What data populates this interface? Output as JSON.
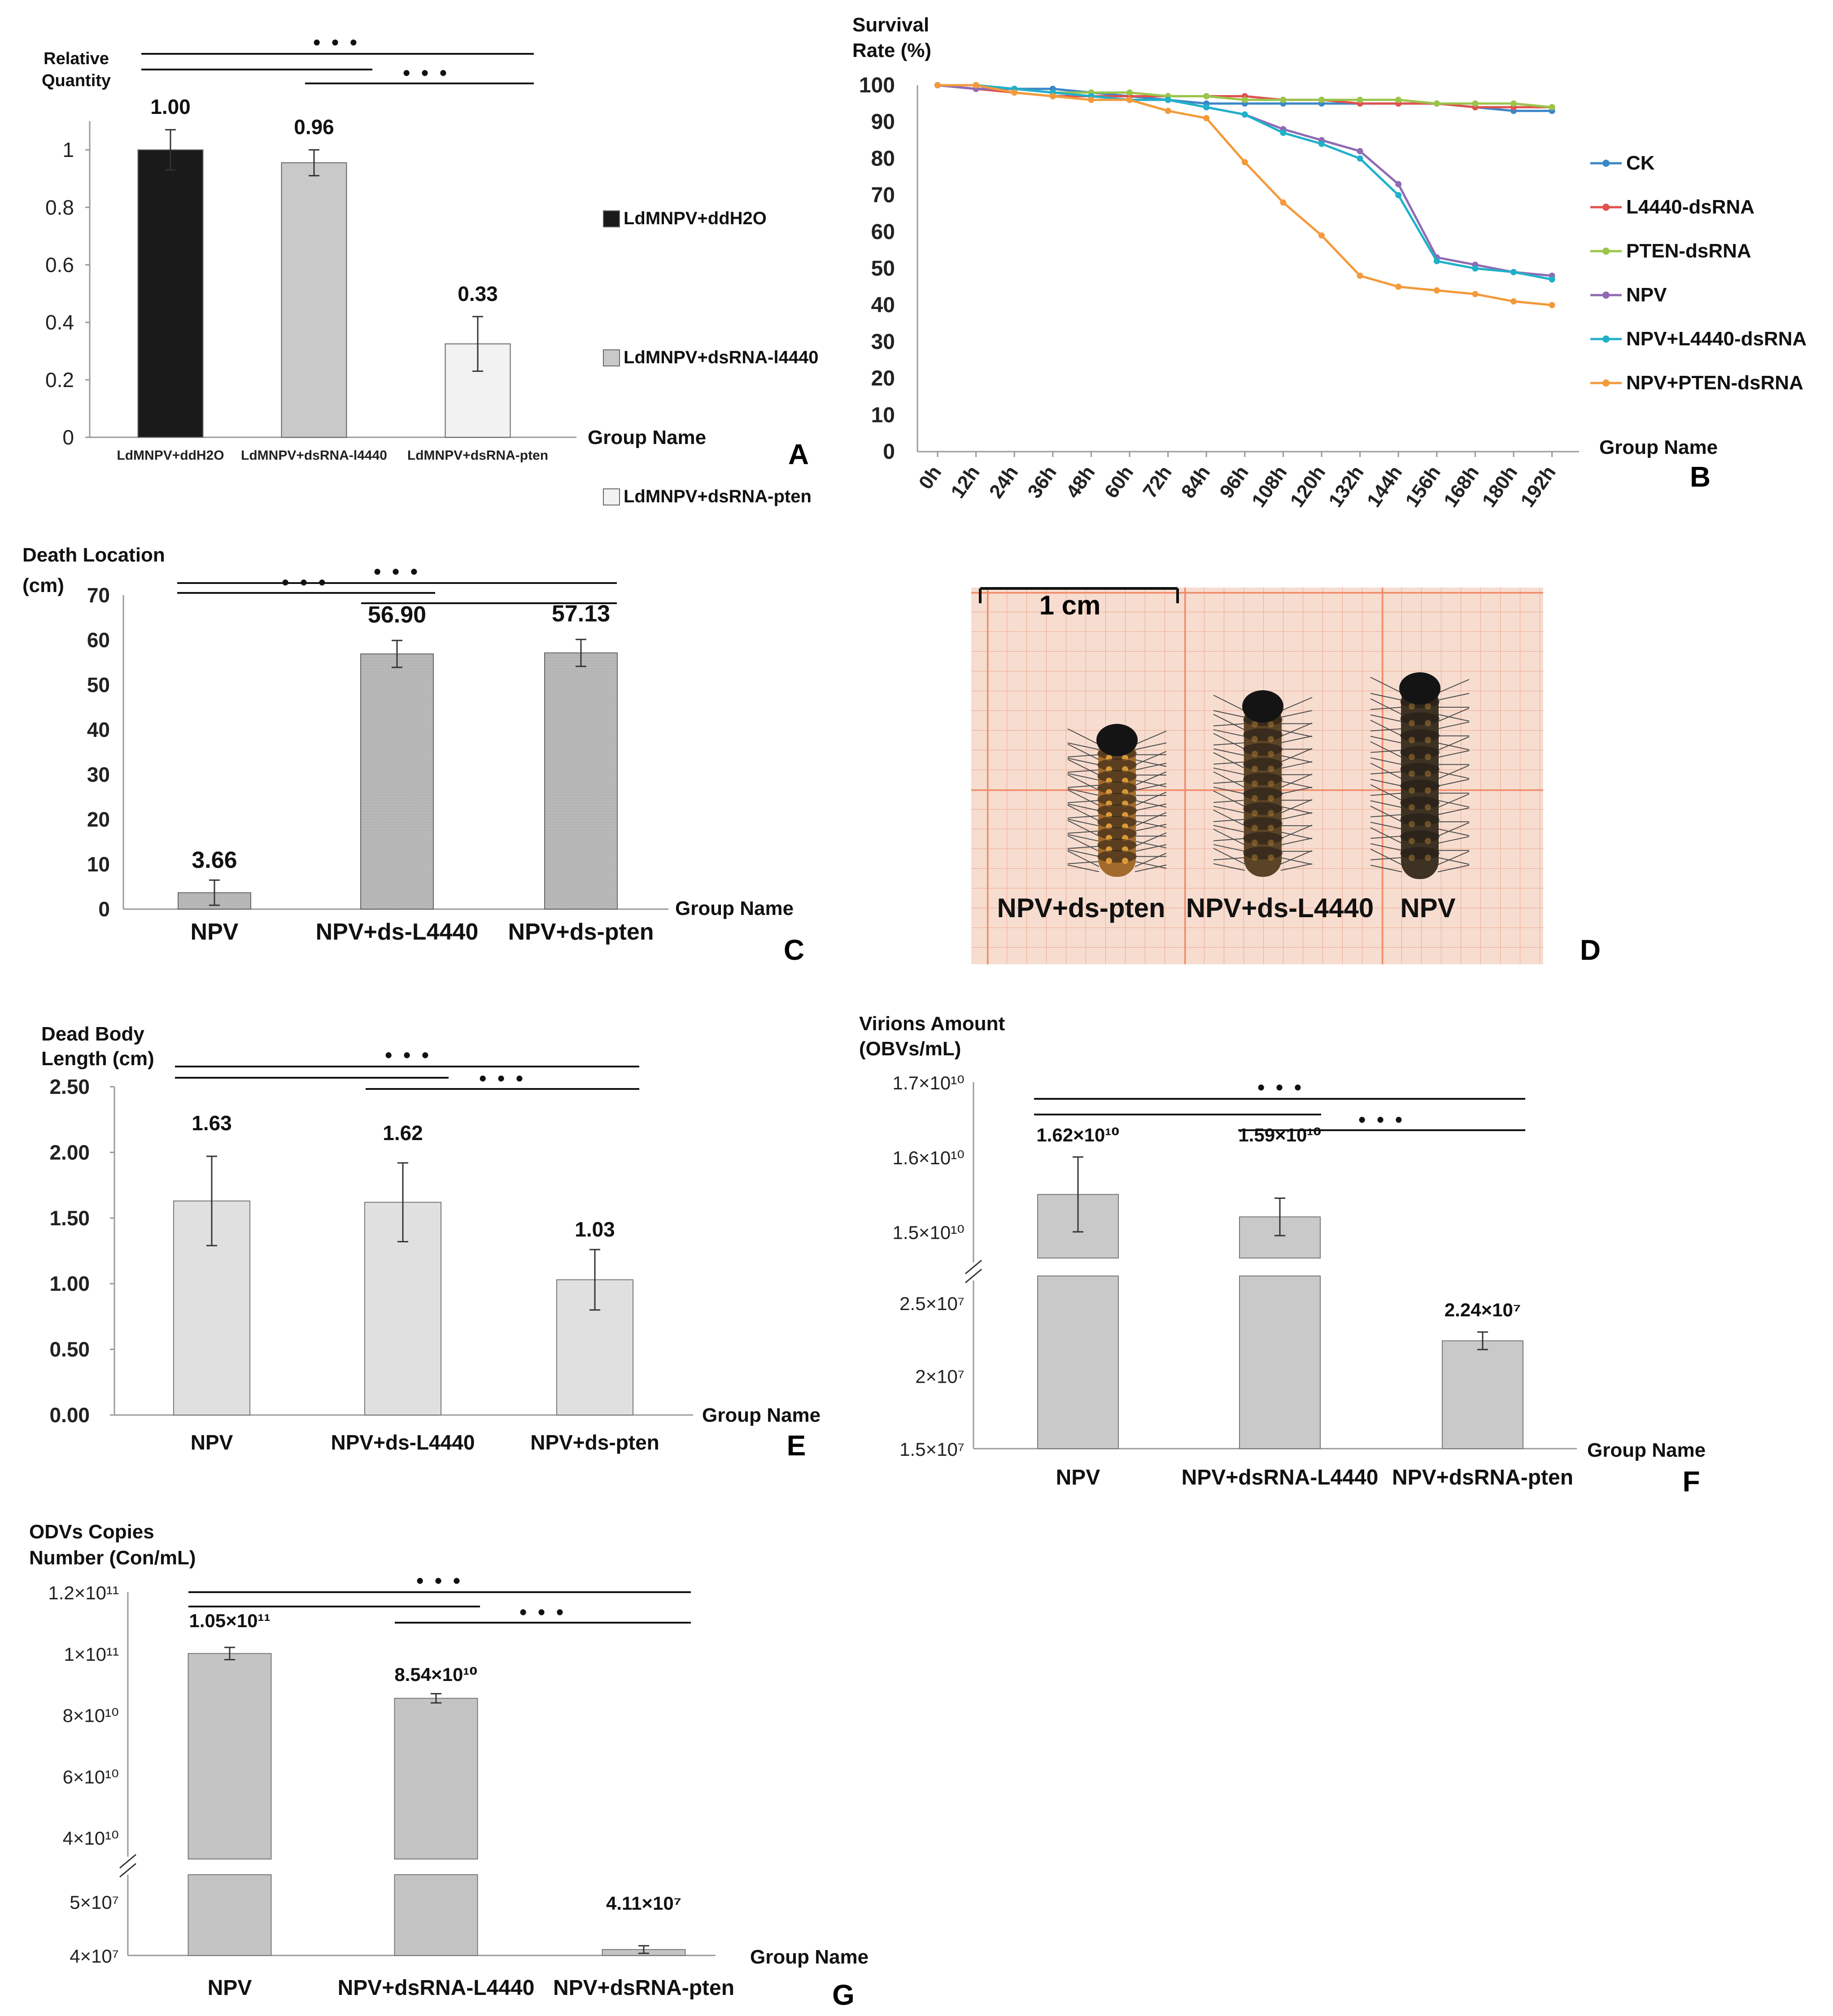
{
  "chart_data": [
    {
      "panel": "A",
      "type": "bar",
      "ylabel": "Relative Quantity",
      "xlabel": "Group Name",
      "ylim": [
        0,
        1.1
      ],
      "yticks": [
        "0",
        "0.2",
        "0.4",
        "0.6",
        "0.8",
        "1"
      ],
      "categories": [
        "LdMNPV+ddH2O",
        "LdMNPV+dsRNA-l4440",
        "LdMNPV+dsRNA-pten"
      ],
      "values": [
        1.0,
        0.955,
        0.325
      ],
      "errors": [
        0.07,
        0.045,
        0.095
      ],
      "value_labels": [
        "1.00",
        "0.96",
        "0.33"
      ],
      "legend": [
        "LdMNPV+ddH2O",
        "LdMNPV+dsRNA-l4440",
        "LdMNPV+dsRNA-pten"
      ],
      "colors": [
        "#1a1a1a",
        "#c9c9c9",
        "#f2f2f2"
      ],
      "significance": "• • •"
    },
    {
      "panel": "B",
      "type": "line",
      "ylabel": "Survival Rate (%)",
      "xlabel": "Group Name",
      "ylim": [
        0,
        100
      ],
      "yticks": [
        "0",
        "10",
        "20",
        "30",
        "40",
        "50",
        "60",
        "70",
        "80",
        "90",
        "100"
      ],
      "x": [
        "0h",
        "12h",
        "24h",
        "36h",
        "48h",
        "60h",
        "72h",
        "84h",
        "96h",
        "108h",
        "120h",
        "132h",
        "144h",
        "156h",
        "168h",
        "180h",
        "192h"
      ],
      "series": [
        {
          "name": "CK",
          "color": "#3a86c8",
          "values": [
            100,
            99,
            99,
            99,
            98,
            97,
            96,
            95,
            95,
            95,
            95,
            95,
            95,
            95,
            94,
            93,
            93
          ]
        },
        {
          "name": "L4440-dsRNA",
          "color": "#e0524f",
          "values": [
            100,
            99,
            98,
            97,
            97,
            97,
            97,
            97,
            97,
            96,
            96,
            95,
            95,
            95,
            94,
            94,
            94
          ]
        },
        {
          "name": "PTEN-dsRNA",
          "color": "#9ac54a",
          "values": [
            100,
            100,
            99,
            98,
            98,
            98,
            97,
            97,
            96,
            96,
            96,
            96,
            96,
            95,
            95,
            95,
            94
          ]
        },
        {
          "name": "NPV",
          "color": "#8f6bb3",
          "values": [
            100,
            99,
            99,
            98,
            97,
            96,
            96,
            94,
            92,
            88,
            85,
            82,
            73,
            53,
            51,
            49,
            48
          ]
        },
        {
          "name": "NPV+L4440-dsRNA",
          "color": "#1fb1c9",
          "values": [
            100,
            100,
            99,
            98,
            97,
            96,
            96,
            94,
            92,
            87,
            84,
            80,
            70,
            52,
            50,
            49,
            47
          ]
        },
        {
          "name": "NPV+PTEN-dsRNA",
          "color": "#f39a3b",
          "values": [
            100,
            100,
            98,
            97,
            96,
            96,
            93,
            91,
            79,
            68,
            59,
            48,
            45,
            44,
            43,
            41,
            40
          ]
        }
      ]
    },
    {
      "panel": "C",
      "type": "bar",
      "ylabel_line1": "Death Location",
      "ylabel_line2": "(cm)",
      "xlabel": "Group Name",
      "ylim": [
        0,
        70
      ],
      "yticks": [
        "0",
        "10",
        "20",
        "30",
        "40",
        "50",
        "60",
        "70"
      ],
      "categories": [
        "NPV",
        "NPV+ds-L4440",
        "NPV+ds-pten"
      ],
      "values": [
        3.66,
        56.9,
        57.13
      ],
      "errors": [
        2.8,
        3.0,
        3.0
      ],
      "value_labels": [
        "3.66",
        "56.90",
        "57.13"
      ],
      "color": "#b8b8b8",
      "significance": "• • •"
    },
    {
      "panel": "D",
      "type": "photo",
      "scale_label": "1 cm",
      "labels": [
        "NPV+ds-pten",
        "NPV+ds-L4440",
        "NPV"
      ]
    },
    {
      "panel": "E",
      "type": "bar",
      "ylabel_line1": "Dead Body",
      "ylabel_line2": "Length (cm)",
      "xlabel": "Group Name",
      "ylim": [
        0,
        2.5
      ],
      "yticks": [
        "0.00",
        "0.50",
        "1.00",
        "1.50",
        "2.00",
        "2.50"
      ],
      "categories": [
        "NPV",
        "NPV+ds-L4440",
        "NPV+ds-pten"
      ],
      "values": [
        1.63,
        1.62,
        1.03
      ],
      "errors": [
        0.34,
        0.3,
        0.23
      ],
      "value_labels": [
        "1.63",
        "1.62",
        "1.03"
      ],
      "color": "#e0e0e0",
      "significance": "• • •"
    },
    {
      "panel": "F",
      "type": "bar",
      "broken_axis": true,
      "ylabel_line1": "Virions Amount",
      "ylabel_line2": "(OBVs/mL)",
      "xlabel": "Group Name",
      "upper_ylim": [
        14500000000.0,
        17000000000.0
      ],
      "upper_yticks": [
        "1.5×10¹⁰",
        "1.6×10¹⁰",
        "1.7×10¹⁰"
      ],
      "lower_ylim": [
        15000000.0,
        27000000.0
      ],
      "lower_yticks": [
        "1.5×10⁷",
        "2×10⁷",
        "2.5×10⁷"
      ],
      "categories": [
        "NPV",
        "NPV+dsRNA-L4440",
        "NPV+dsRNA-pten"
      ],
      "values": [
        16200000000.0,
        15900000000.0,
        22400000.0
      ],
      "errors": [
        500000000.0,
        250000000.0,
        600000.0
      ],
      "value_labels": [
        "1.62×10¹⁰",
        "1.59×10¹⁰",
        "2.24×10⁷"
      ],
      "color": "#c9c9c9",
      "significance": "• • •"
    },
    {
      "panel": "G",
      "type": "bar",
      "broken_axis": true,
      "ylabel_line1": "ODVs Copies",
      "ylabel_line2": "Number (Con/mL)",
      "xlabel": "Group Name",
      "upper_ylim": [
        33000000000.0,
        120000000000.0
      ],
      "upper_yticks": [
        "4×10¹⁰",
        "6×10¹⁰",
        "8×10¹⁰",
        "1×10¹¹",
        "1.2×10¹¹"
      ],
      "lower_ylim": [
        40000000.0,
        55000000.0
      ],
      "lower_yticks": [
        "4×10⁷",
        "5×10⁷"
      ],
      "categories": [
        "NPV",
        "NPV+dsRNA-L4440",
        "NPV+dsRNA-pten"
      ],
      "values": [
        105000000000.0,
        85400000000.0,
        41100000.0
      ],
      "errors": [
        2000000000.0,
        1500000000.0,
        700000.0
      ],
      "value_labels": [
        "1.05×10¹¹",
        "8.54×10¹⁰",
        "4.11×10⁷"
      ],
      "color": "#c4c4c4",
      "significance": "• • •"
    }
  ]
}
